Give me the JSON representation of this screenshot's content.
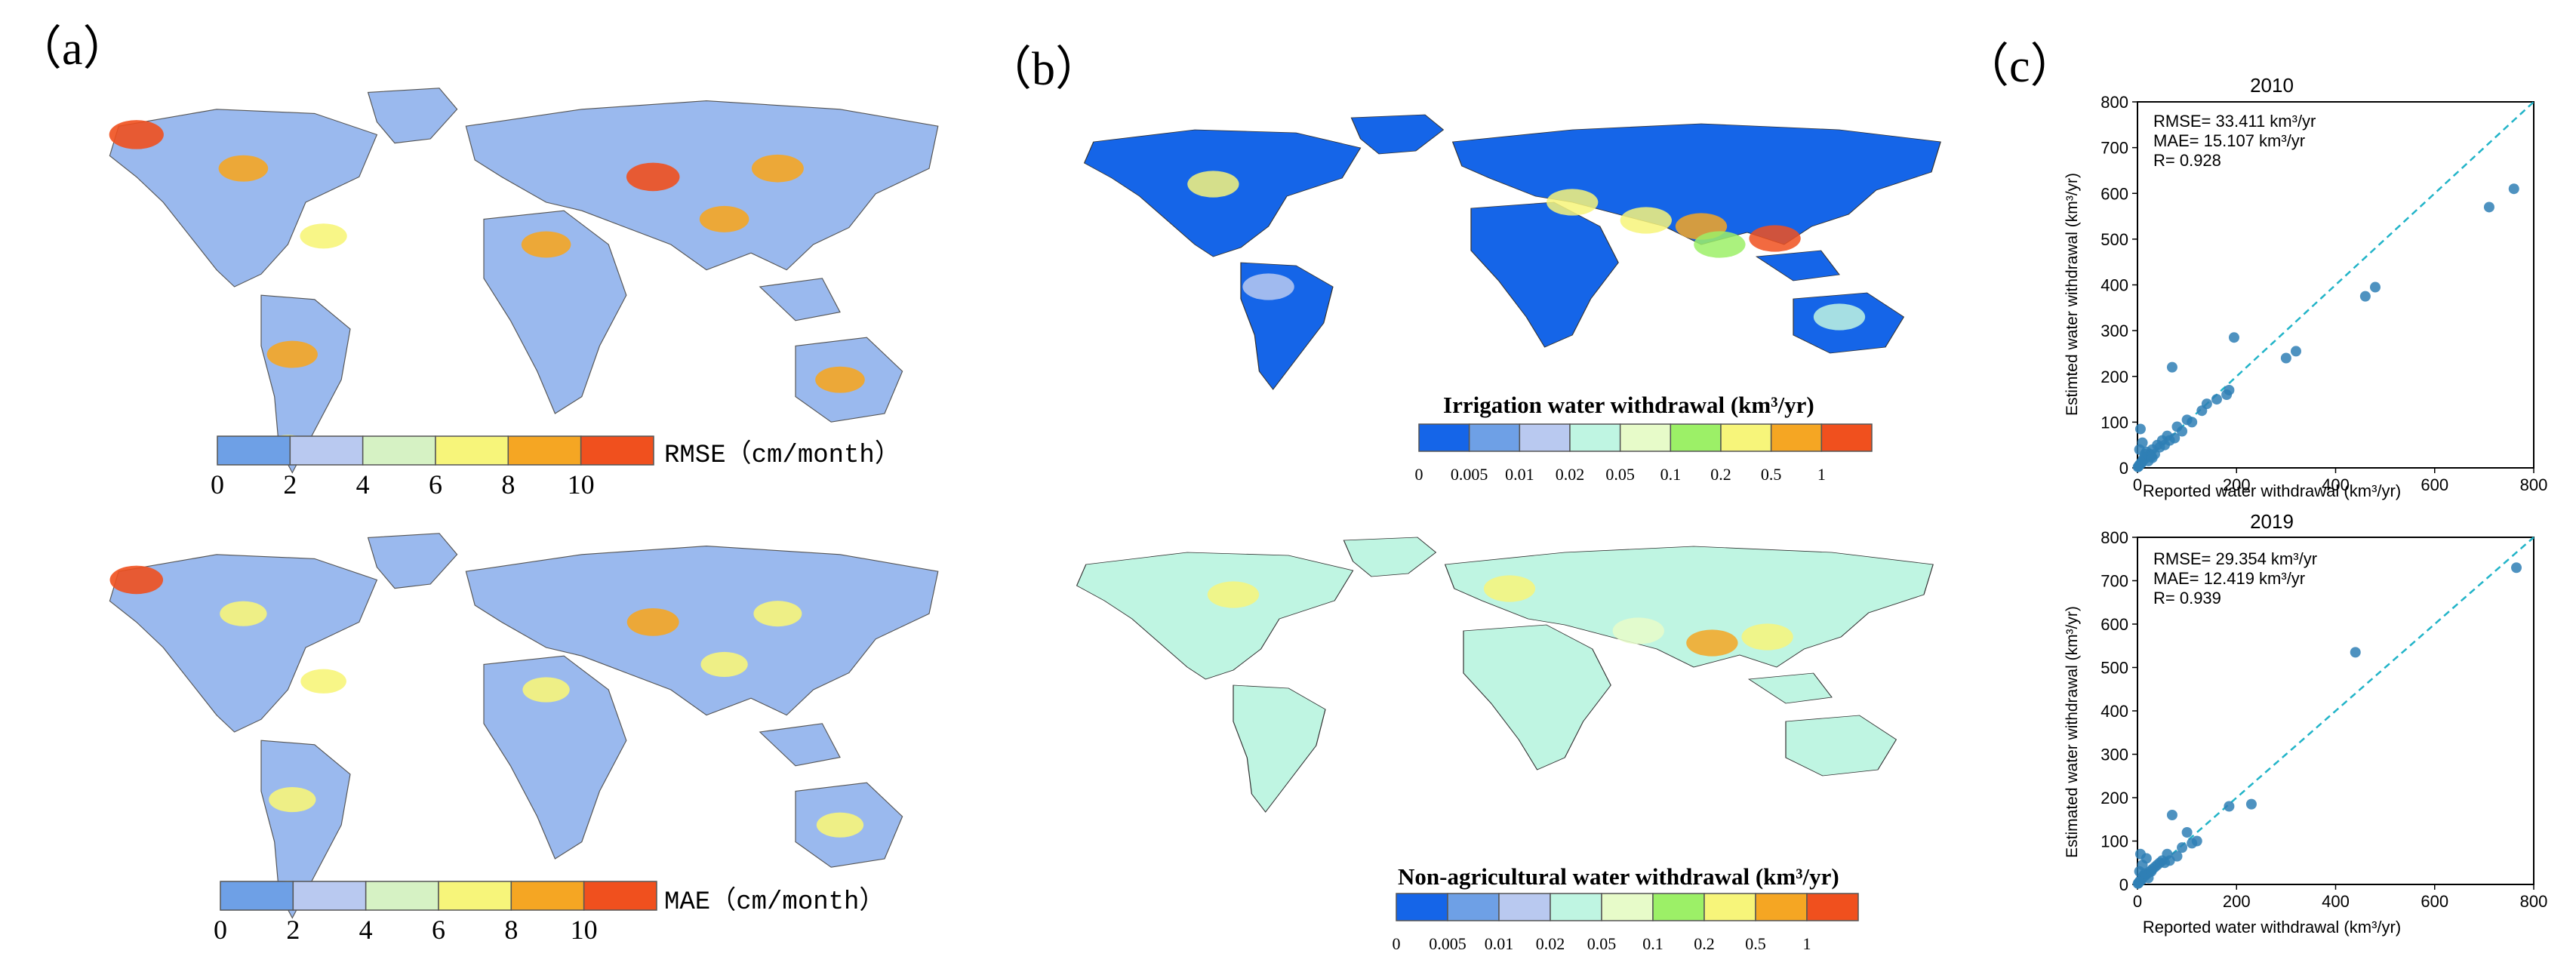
{
  "panels": {
    "a": {
      "label": "（a）"
    },
    "b": {
      "label": "（b）"
    },
    "c": {
      "label": "（c）"
    }
  },
  "chart_data": [
    {
      "type": "heatmap",
      "panel": "a",
      "colorbar_label": "RMSE（cm/month）",
      "ticks": [
        "0",
        "2",
        "4",
        "6",
        "8",
        "10"
      ],
      "bins": [
        0,
        2,
        4,
        6,
        8,
        10,
        12
      ],
      "colors": [
        "#6ea0e6",
        "#b9c9f0",
        "#d6f2c4",
        "#f7f57a",
        "#f5a623",
        "#f0501e"
      ],
      "hotspots_level": [
        0.9,
        0.7,
        0.6,
        0.75,
        0.7,
        0.85,
        0.7,
        0.8,
        0.7,
        0.6
      ]
    },
    {
      "type": "heatmap",
      "panel": "a",
      "colorbar_label": "MAE（cm/month）",
      "ticks": [
        "0",
        "2",
        "4",
        "6",
        "8",
        "10"
      ],
      "bins": [
        0,
        2,
        4,
        6,
        8,
        10,
        12
      ],
      "colors": [
        "#6ea0e6",
        "#b9c9f0",
        "#d6f2c4",
        "#f7f57a",
        "#f5a623",
        "#f0501e"
      ],
      "hotspots_level": [
        0.85,
        0.6,
        0.55,
        0.6,
        0.6,
        0.8,
        0.6,
        0.65,
        0.6,
        0.5
      ]
    },
    {
      "type": "heatmap",
      "panel": "b",
      "colorbar_title": "Irrigation water withdrawal (km³/yr)",
      "ticks": [
        "0",
        "0.005",
        "0.01",
        "0.02",
        "0.05",
        "0.1",
        "0.2",
        "0.5",
        "1"
      ],
      "colors": [
        "#1565e8",
        "#6ea0e6",
        "#b9c9f0",
        "#bff5e2",
        "#e7fbc9",
        "#9cf067",
        "#f7f57a",
        "#f5a623",
        "#f0501e"
      ],
      "base_color": "#1565e8"
    },
    {
      "type": "heatmap",
      "panel": "b",
      "colorbar_title": "Non-agricultural water withdrawal (km³/yr)",
      "ticks": [
        "0",
        "0.005",
        "0.01",
        "0.02",
        "0.05",
        "0.1",
        "0.2",
        "0.5",
        "1"
      ],
      "colors": [
        "#1565e8",
        "#6ea0e6",
        "#b9c9f0",
        "#bff5e2",
        "#e7fbc9",
        "#9cf067",
        "#f7f57a",
        "#f5a623",
        "#f0501e"
      ],
      "base_color": "#bff5e2"
    },
    {
      "type": "scatter",
      "panel": "c",
      "title": "2010",
      "xlabel": "Reported water withdrawal (km³/yr)",
      "ylabel": "Estimted water withdrawal (km³/yr)",
      "xlim": [
        0,
        800
      ],
      "ylim": [
        0,
        800
      ],
      "xticks": [
        "0",
        "200",
        "400",
        "600",
        "800"
      ],
      "yticks": [
        "0",
        "100",
        "200",
        "300",
        "400",
        "500",
        "600",
        "700",
        "800"
      ],
      "stats": [
        "RMSE= 33.411 km³/yr",
        "MAE= 15.107 km³/yr",
        "R= 0.928"
      ],
      "point_color": "#2f7fb5",
      "line_color": "#22b4c8",
      "x": [
        760,
        710,
        480,
        460,
        320,
        300,
        195,
        185,
        180,
        160,
        140,
        130,
        100,
        80,
        60,
        50,
        40,
        30,
        25,
        20,
        15,
        10,
        8,
        5,
        3,
        2,
        1,
        12,
        18,
        35,
        45,
        70,
        90,
        110,
        22,
        6,
        4,
        10,
        15,
        28,
        55,
        65,
        75,
        8,
        30
      ],
      "y": [
        610,
        570,
        395,
        375,
        255,
        240,
        285,
        170,
        160,
        150,
        140,
        125,
        105,
        90,
        70,
        60,
        50,
        40,
        30,
        25,
        20,
        15,
        10,
        8,
        5,
        3,
        2,
        20,
        35,
        30,
        45,
        220,
        80,
        100,
        15,
        85,
        40,
        55,
        30,
        25,
        50,
        60,
        65,
        12,
        22
      ]
    },
    {
      "type": "scatter",
      "panel": "c",
      "title": "2019",
      "xlabel": "Reported water withdrawal (km³/yr)",
      "ylabel": "Estimated water withdrawal (km³/yr)",
      "xlim": [
        0,
        800
      ],
      "ylim": [
        0,
        800
      ],
      "xticks": [
        "0",
        "200",
        "400",
        "600",
        "800"
      ],
      "yticks": [
        "0",
        "100",
        "200",
        "300",
        "400",
        "500",
        "600",
        "700",
        "800"
      ],
      "stats": [
        "RMSE= 29.354 km³/yr",
        "MAE= 12.419 km³/yr",
        "R= 0.939"
      ],
      "point_color": "#2f7fb5",
      "line_color": "#22b4c8",
      "x": [
        765,
        440,
        230,
        185,
        120,
        110,
        90,
        70,
        60,
        50,
        40,
        30,
        25,
        20,
        15,
        10,
        8,
        5,
        3,
        2,
        1,
        12,
        18,
        35,
        45,
        80,
        100,
        65,
        22,
        6,
        4,
        10,
        15,
        28,
        55
      ],
      "y": [
        730,
        535,
        185,
        180,
        100,
        95,
        85,
        160,
        70,
        55,
        45,
        35,
        30,
        25,
        20,
        15,
        10,
        8,
        5,
        3,
        2,
        20,
        60,
        40,
        50,
        65,
        120,
        55,
        15,
        70,
        30,
        45,
        25,
        30,
        50
      ]
    }
  ]
}
